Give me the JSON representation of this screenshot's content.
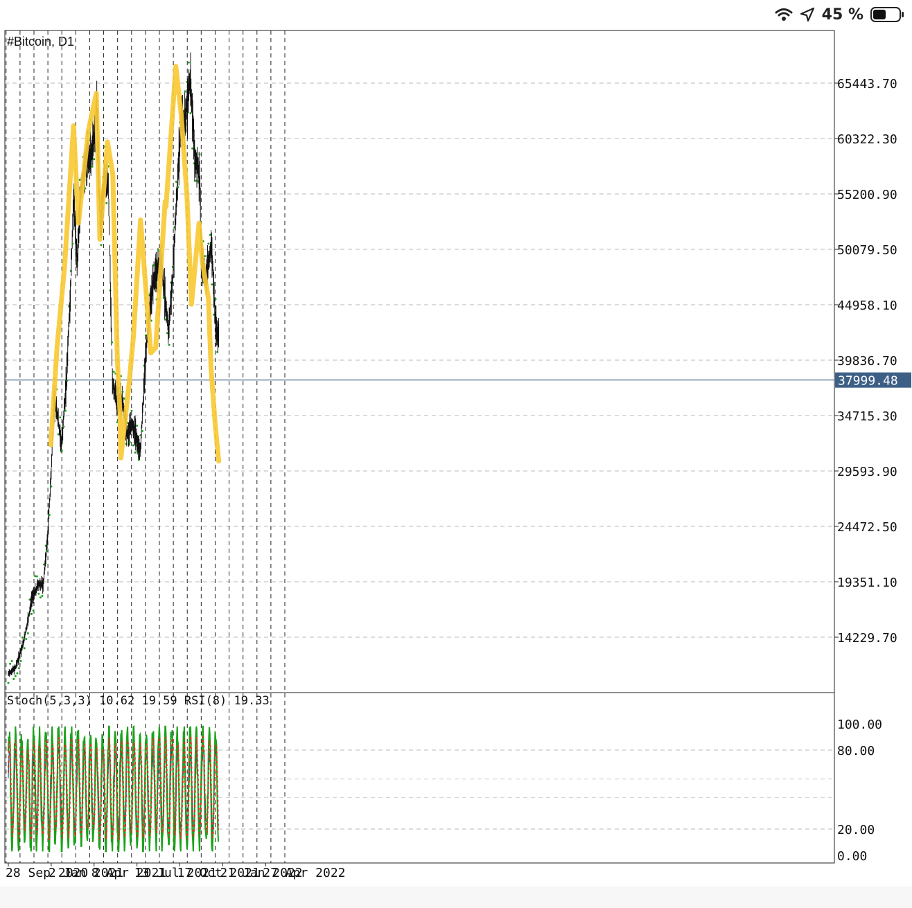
{
  "status_bar": {
    "battery_percent": "45 %",
    "icons": [
      "wifi-icon",
      "location-arrow-icon",
      "battery-icon"
    ]
  },
  "chart_data": {
    "type": "bar",
    "style": "ohlc-bars",
    "title": "#Bitcoin, D1",
    "symbol": "#Bitcoin",
    "timeframe": "D1",
    "price_axis": {
      "ticks": [
        65443.7,
        60322.3,
        55200.9,
        50079.5,
        44958.1,
        39836.7,
        34715.3,
        29593.9,
        24472.5,
        19351.1,
        14229.7
      ],
      "tick_labels": [
        "65443.70",
        "60322.30",
        "55200.90",
        "50079.50",
        "44958.10",
        "39836.70",
        "34715.30",
        "29593.90",
        "24472.50",
        "19351.10",
        "14229.70"
      ],
      "range": [
        8900,
        71000
      ]
    },
    "current_price": {
      "label": "37999.48",
      "value": 37999.48
    },
    "time_axis": {
      "labels": [
        "28 Sep 2020",
        "2 Jan 2021",
        "8 Apr 2021",
        "13 Jul 2021",
        "17 Oct 2021",
        "21 Jan 2022",
        "27 Apr 2022"
      ]
    },
    "price_series": {
      "name": "",
      "x": [
        "2020-09-28",
        "2020-10-15",
        "2020-11-01",
        "2020-11-20",
        "2020-12-05",
        "2020-12-15",
        "2020-12-25",
        "2021-01-02",
        "2021-01-08",
        "2021-01-15",
        "2021-01-25",
        "2021-02-05",
        "2021-02-15",
        "2021-02-21",
        "2021-03-01",
        "2021-03-10",
        "2021-03-20",
        "2021-04-01",
        "2021-04-10",
        "2021-04-14",
        "2021-04-22",
        "2021-05-01",
        "2021-05-10",
        "2021-05-19",
        "2021-05-28",
        "2021-06-10",
        "2021-06-22",
        "2021-07-01",
        "2021-07-13",
        "2021-07-21",
        "2021-08-01",
        "2021-08-14",
        "2021-08-25",
        "2021-09-06",
        "2021-09-21",
        "2021-10-01",
        "2021-10-10",
        "2021-10-20",
        "2021-10-28",
        "2021-11-09",
        "2021-11-20",
        "2021-11-30",
        "2021-12-04",
        "2021-12-15",
        "2021-12-27",
        "2022-01-05",
        "2022-01-12"
      ],
      "y": [
        10800,
        11500,
        13700,
        17800,
        19200,
        19000,
        23500,
        29500,
        36000,
        35000,
        32000,
        38000,
        47000,
        55000,
        49000,
        56000,
        58000,
        59000,
        61000,
        63500,
        52000,
        57000,
        56000,
        38000,
        36000,
        36000,
        33000,
        34000,
        32500,
        31500,
        40000,
        46000,
        48000,
        49000,
        42500,
        47500,
        55000,
        62000,
        61500,
        66000,
        58500,
        57000,
        49000,
        47500,
        50500,
        43000,
        42000
      ]
    },
    "stochastic": {
      "label": "Stoch(5,3,3) 10.62 19.59 RSI(8) 19.33",
      "params": "5,3,3",
      "main": 10.62,
      "signal": 19.59,
      "rsi_period": 8,
      "rsi": 19.33,
      "range": [
        0,
        100
      ],
      "levels": [
        80,
        20
      ],
      "tick_labels": [
        "100.00",
        "80.00",
        "20.00",
        "0.00"
      ],
      "colors": {
        "stoch_main": "#1aa31a",
        "stoch_signal": "#d8321e",
        "rsi": "#1c2fbf"
      }
    },
    "drawn_line": {
      "color": "#f9c934",
      "x": [
        "2021-01-01",
        "2021-01-15",
        "2021-02-01",
        "2021-02-21",
        "2021-03-04",
        "2021-03-26",
        "2021-04-13",
        "2021-04-21",
        "2021-05-08",
        "2021-05-20",
        "2021-05-30",
        "2021-06-05",
        "2021-06-07",
        "2021-06-25",
        "2021-07-05",
        "2021-07-21",
        "2021-08-13",
        "2021-08-24",
        "2021-09-14",
        "2021-09-16",
        "2021-10-08",
        "2021-10-20",
        "2021-11-02",
        "2021-11-12",
        "2021-11-29",
        "2021-12-06",
        "2021-12-20",
        "2021-12-26",
        "2022-01-04",
        "2022-01-12"
      ],
      "y": [
        32000,
        41000,
        48500,
        61500,
        52500,
        61000,
        64500,
        51000,
        60000,
        57000,
        40000,
        35000,
        30800,
        37500,
        42000,
        52800,
        40500,
        41000,
        54500,
        54000,
        67000,
        62500,
        55000,
        45000,
        52500,
        49000,
        45500,
        39000,
        34000,
        30500
      ]
    },
    "grid": true
  }
}
